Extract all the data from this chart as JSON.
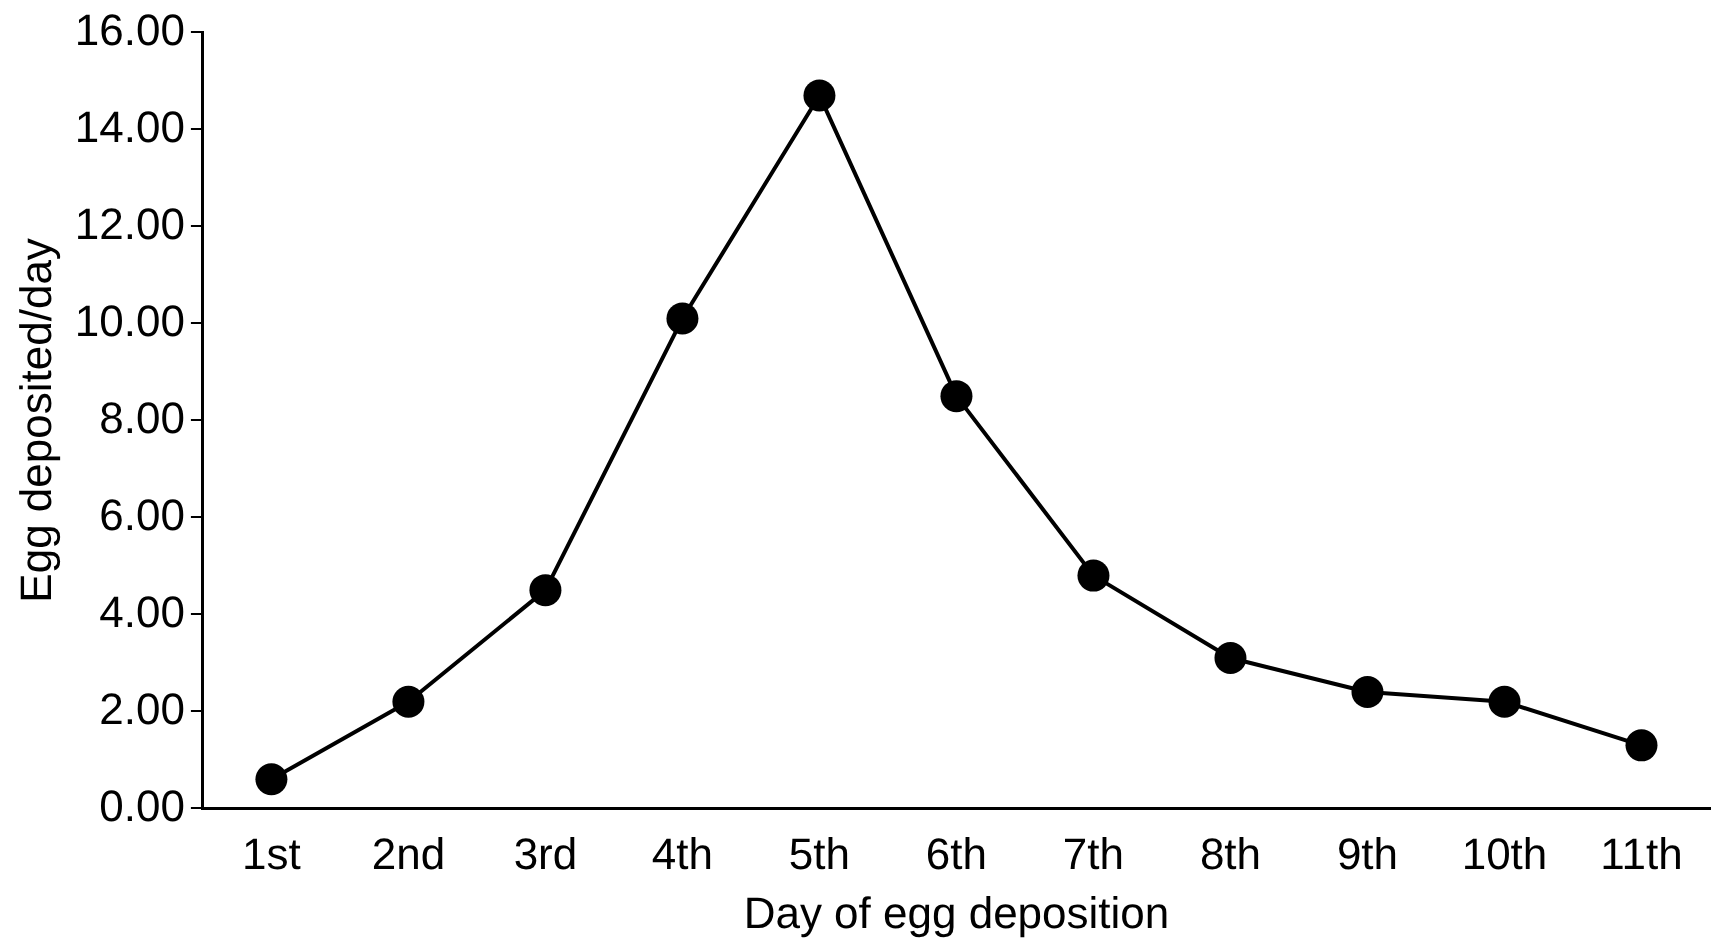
{
  "chart_data": {
    "type": "line",
    "xlabel": "Day of egg deposition",
    "ylabel": "Egg deposited/day",
    "categories": [
      "1st",
      "2nd",
      "3rd",
      "4th",
      "5th",
      "6th",
      "7th",
      "8th",
      "9th",
      "10th",
      "11th"
    ],
    "series": [
      {
        "color": "#000000",
        "values": [
          0.6,
          2.2,
          4.5,
          10.1,
          14.7,
          8.5,
          4.8,
          3.1,
          2.4,
          2.2,
          1.3
        ]
      }
    ],
    "ylim": [
      0,
      16
    ],
    "yticks": [
      {
        "value": 0,
        "label": "0.00"
      },
      {
        "value": 2,
        "label": "2.00"
      },
      {
        "value": 4,
        "label": "4.00"
      },
      {
        "value": 6,
        "label": "6.00"
      },
      {
        "value": 8,
        "label": "8.00"
      },
      {
        "value": 10,
        "label": "10.00"
      },
      {
        "value": 12,
        "label": "12.00"
      },
      {
        "value": 14,
        "label": "14.00"
      },
      {
        "value": 16,
        "label": "16.00"
      }
    ],
    "grid": false,
    "legend": false,
    "marker": "circle",
    "line_style": "solid"
  }
}
